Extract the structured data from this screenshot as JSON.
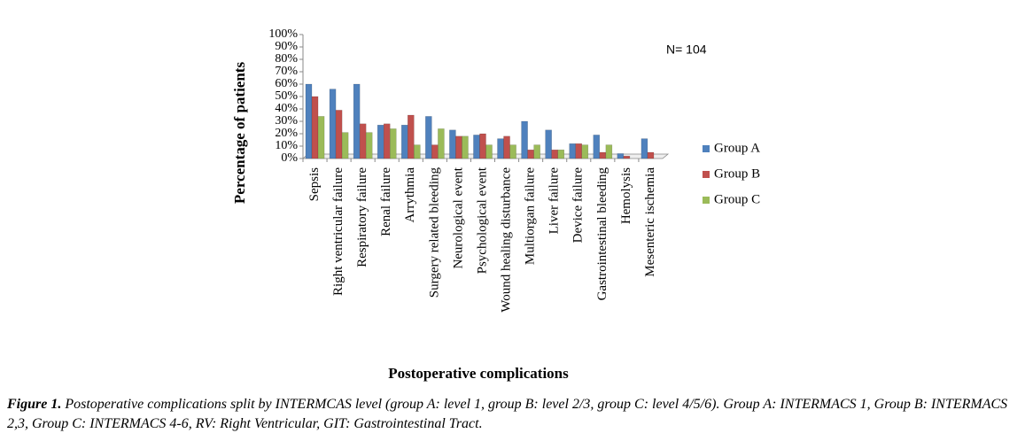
{
  "chart_data": {
    "type": "bar",
    "y_label": "Percentage  of patients",
    "x_label": "Postoperative complications",
    "annotation": "N= 104",
    "categories": [
      "Sepsis",
      "Right ventricular failure",
      "Respiratory failure",
      "Renal failure",
      "Arrythmia",
      "Surgery related bleeding",
      "Neurological event",
      "Psychological event",
      "Wound healing disturbance",
      "Multiorgan failure",
      "Liver failure",
      "Device failure",
      "Gastrointestinal bleeding",
      "Hemolysis",
      "Mesenteric ischemia"
    ],
    "series": [
      {
        "name": "Group A",
        "color": "#4f81bd",
        "values": [
          60,
          56,
          60,
          27,
          27,
          34,
          23,
          19,
          16,
          30,
          23,
          12,
          19,
          4,
          16
        ]
      },
      {
        "name": "Group B",
        "color": "#c0504d",
        "values": [
          50,
          39,
          28,
          28,
          35,
          11,
          18,
          20,
          18,
          7,
          7,
          12,
          5,
          2,
          5
        ]
      },
      {
        "name": "Group C",
        "color": "#9bbb59",
        "values": [
          34,
          21,
          21,
          24,
          11,
          24,
          18,
          11,
          11,
          11,
          7,
          11,
          11,
          0,
          0
        ]
      }
    ],
    "ylim": [
      0,
      100
    ],
    "yticks": [
      {
        "value": 0,
        "label": "0%"
      },
      {
        "value": 10,
        "label": "10%"
      },
      {
        "value": 20,
        "label": "20%"
      },
      {
        "value": 30,
        "label": "30%"
      },
      {
        "value": 40,
        "label": "40%"
      },
      {
        "value": 50,
        "label": "50%"
      },
      {
        "value": 60,
        "label": "60%"
      },
      {
        "value": 70,
        "label": "70%"
      },
      {
        "value": 80,
        "label": "80%"
      },
      {
        "value": 90,
        "label": "90%"
      },
      {
        "value": 100,
        "label": "100%"
      }
    ],
    "grid": false,
    "legend": "right"
  },
  "caption": {
    "label": "Figure 1.",
    "text": "Postoperative complications split by INTERMCAS level (group A: level 1, group B: level 2/3, group C: level 4/5/6). Group A: INTERMACS 1, Group B: INTERMACS 2,3, Group C: INTERMACS 4-6, RV: Right Ventricular, GIT: Gastrointestinal Tract."
  }
}
